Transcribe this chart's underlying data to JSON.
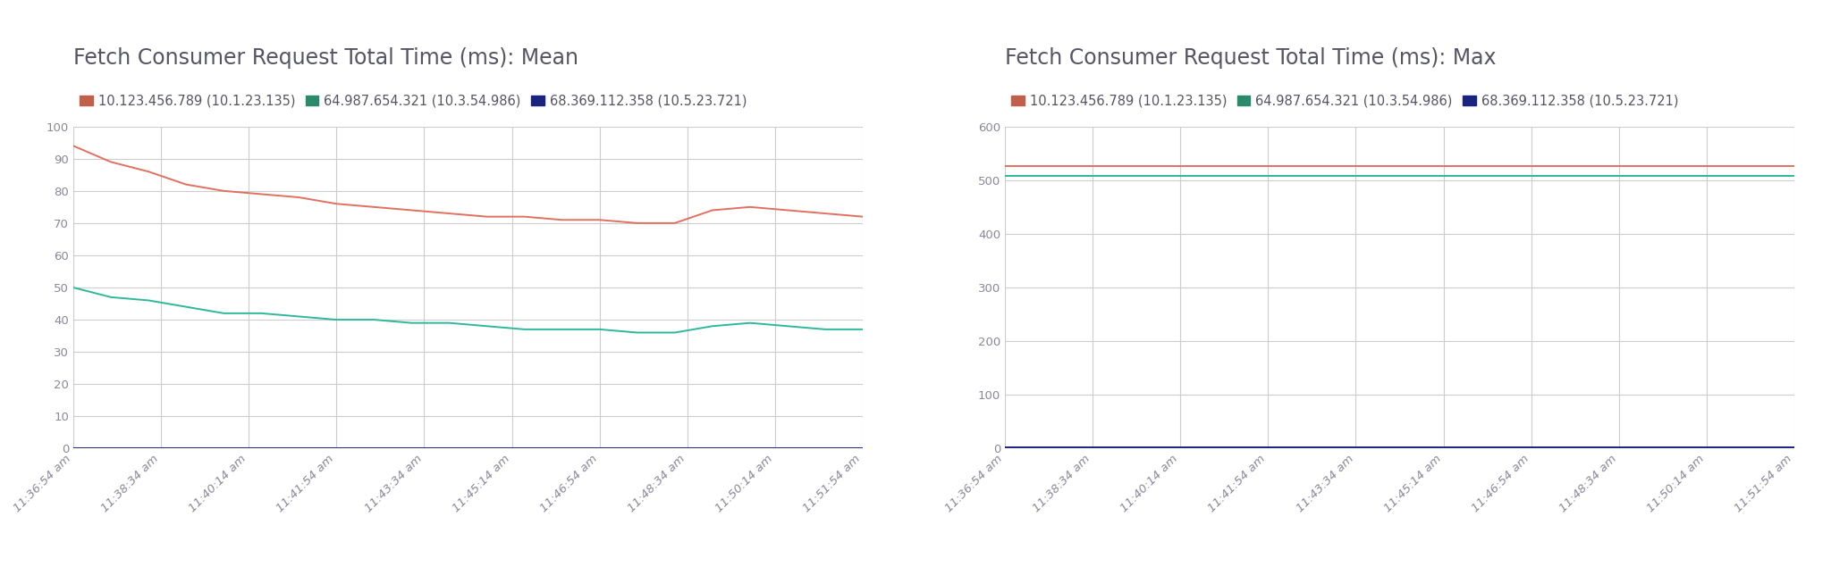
{
  "title_left": "Fetch Consumer Request Total Time (ms): Mean",
  "title_right": "Fetch Consumer Request Total Time (ms): Max",
  "legend_labels": [
    "10.123.456.789 (10.1.23.135)",
    "64.987.654.321 (10.3.54.986)",
    "68.369.112.358 (10.5.23.721)"
  ],
  "line_colors": [
    "#e07060",
    "#2db89b",
    "#1a237e"
  ],
  "legend_colors": [
    "#c0604a",
    "#2a8a6a",
    "#1a237e"
  ],
  "x_labels": [
    "11:36:54 am",
    "11:38:34 am",
    "11:40:14 am",
    "11:41:54 am",
    "11:43:34 am",
    "11:45:14 am",
    "11:46:54 am",
    "11:48:34 am",
    "11:50:14 am",
    "11:51:54 am"
  ],
  "mean_series": {
    "s1": [
      94,
      89,
      86,
      82,
      80,
      79,
      78,
      76,
      75,
      74,
      73,
      72,
      72,
      71,
      71,
      70,
      70,
      74,
      75,
      74,
      73,
      72
    ],
    "s2": [
      50,
      47,
      46,
      44,
      42,
      42,
      41,
      40,
      40,
      39,
      39,
      38,
      37,
      37,
      37,
      36,
      36,
      38,
      39,
      38,
      37,
      37
    ],
    "s3": [
      0,
      0,
      0,
      0,
      0,
      0,
      0,
      0,
      0,
      0,
      0,
      0,
      0,
      0,
      0,
      0,
      0,
      0,
      0,
      0,
      0,
      0
    ]
  },
  "max_series": {
    "s1": [
      527,
      527,
      527,
      527,
      527,
      527,
      527,
      527,
      527,
      527,
      527,
      527,
      527,
      527,
      527,
      527,
      527,
      527,
      527,
      527,
      527,
      527
    ],
    "s2": [
      508,
      508,
      508,
      508,
      508,
      508,
      508,
      508,
      508,
      508,
      508,
      508,
      508,
      508,
      508,
      508,
      508,
      508,
      508,
      508,
      508,
      508
    ],
    "s3": [
      2,
      2,
      2,
      2,
      2,
      2,
      2,
      2,
      2,
      2,
      2,
      2,
      2,
      2,
      2,
      2,
      2,
      2,
      2,
      2,
      2,
      2
    ]
  },
  "mean_ylim": [
    0,
    100
  ],
  "max_ylim": [
    0,
    600
  ],
  "mean_yticks": [
    0,
    10,
    20,
    30,
    40,
    50,
    60,
    70,
    80,
    90,
    100
  ],
  "max_yticks": [
    0,
    100,
    200,
    300,
    400,
    500,
    600
  ],
  "background_color": "#ffffff",
  "grid_color": "#cccccc",
  "title_color": "#555566",
  "tick_color": "#888899",
  "legend_color": "#555566",
  "title_fontsize": 17,
  "legend_fontsize": 10.5,
  "tick_fontsize": 9.5
}
